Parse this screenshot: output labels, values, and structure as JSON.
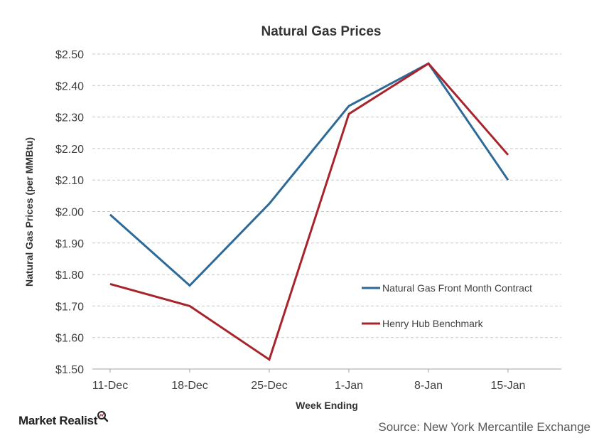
{
  "chart_data": {
    "type": "line",
    "title": "Natural  Gas  Prices",
    "xlabel": "Week Ending",
    "ylabel": "Natural Gas Prices (per MMBtu)",
    "categories": [
      "11-Dec",
      "18-Dec",
      "25-Dec",
      "1-Jan",
      "8-Jan",
      "15-Jan"
    ],
    "ylim": [
      1.5,
      2.5
    ],
    "yticks": [
      1.5,
      1.6,
      1.7,
      1.8,
      1.9,
      2.0,
      2.1,
      2.2,
      2.3,
      2.4,
      2.5
    ],
    "y_tick_prefix": "$",
    "grid": true,
    "legend_position": "right",
    "series": [
      {
        "name": "Natural Gas Front Month Contract",
        "color": "#2d6a97",
        "values": [
          1.99,
          1.765,
          2.025,
          2.335,
          2.47,
          2.1
        ]
      },
      {
        "name": "Henry Hub Benchmark",
        "color": "#a8242c",
        "values": [
          1.77,
          1.7,
          1.53,
          2.31,
          2.47,
          2.18
        ]
      }
    ]
  },
  "footer": {
    "brand": "Market Realist",
    "brand_icon": "magnifier-icon",
    "source": "Source: New York Mercantile Exchange"
  }
}
